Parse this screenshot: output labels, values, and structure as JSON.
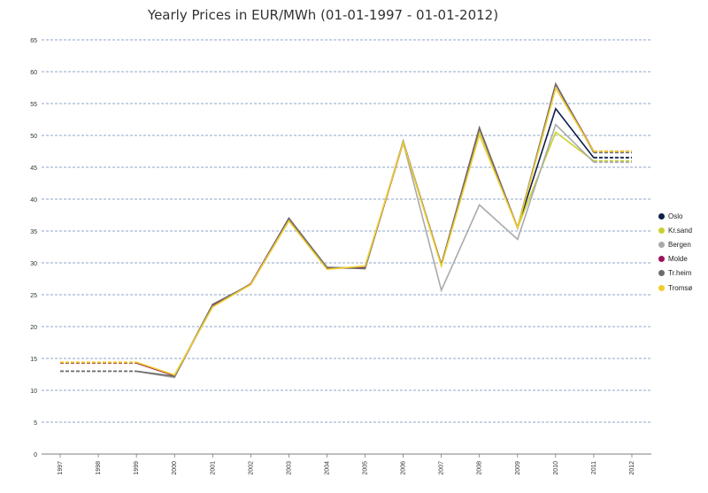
{
  "chart_data": {
    "type": "line",
    "title": "Yearly Prices in EUR/MWh (01-01-1997 - 01-01-2012)",
    "xlabel": "",
    "ylabel": "",
    "categories": [
      "1997",
      "1998",
      "1999",
      "2000",
      "2001",
      "2002",
      "2003",
      "2004",
      "2005",
      "2006",
      "2007",
      "2008",
      "2009",
      "2010",
      "2011",
      "2012"
    ],
    "ylim": [
      0,
      65
    ],
    "yticks": [
      0,
      5,
      10,
      15,
      20,
      25,
      30,
      35,
      40,
      45,
      50,
      55,
      60,
      65
    ],
    "grid": true,
    "legend_position": "right",
    "dashed_segments": [
      "1997-1999",
      "2011-2012"
    ],
    "series": [
      {
        "name": "Oslo",
        "color": "#0f2046",
        "values": [
          14.3,
          14.3,
          14.3,
          12.3,
          23.2,
          26.7,
          36.8,
          29.2,
          29.3,
          48.9,
          29.7,
          50.9,
          35.5,
          54.2,
          46.5,
          46.5
        ]
      },
      {
        "name": "Kr.sand",
        "color": "#c8d22e",
        "values": [
          14.3,
          14.3,
          14.3,
          12.3,
          23.2,
          26.7,
          36.8,
          29.2,
          29.3,
          48.9,
          29.7,
          50.9,
          35.5,
          50.5,
          46.0,
          46.0
        ]
      },
      {
        "name": "Bergen",
        "color": "#aaaaaa",
        "values": [
          13.0,
          13.0,
          13.0,
          12.0,
          23.4,
          26.6,
          36.6,
          29.2,
          29.3,
          48.9,
          25.7,
          39.1,
          33.7,
          51.7,
          45.8,
          45.8
        ]
      },
      {
        "name": "Molde",
        "color": "#9e1259",
        "values": [
          14.3,
          14.3,
          14.3,
          12.3,
          23.2,
          26.7,
          37.0,
          29.2,
          29.2,
          48.9,
          29.7,
          51.2,
          35.5,
          58.0,
          47.5,
          47.5
        ]
      },
      {
        "name": "Tr.heim",
        "color": "#6d6d6d",
        "values": [
          13.0,
          13.0,
          13.0,
          12.2,
          23.5,
          26.6,
          37.0,
          29.3,
          29.1,
          49.1,
          29.7,
          51.2,
          35.5,
          58.1,
          47.3,
          47.3
        ]
      },
      {
        "name": "Tromsø",
        "color": "#f0cc2c",
        "values": [
          14.4,
          14.4,
          14.4,
          12.4,
          23.1,
          26.6,
          36.6,
          29.0,
          29.5,
          48.9,
          29.5,
          50.1,
          35.5,
          57.4,
          47.5,
          47.5
        ]
      }
    ]
  }
}
